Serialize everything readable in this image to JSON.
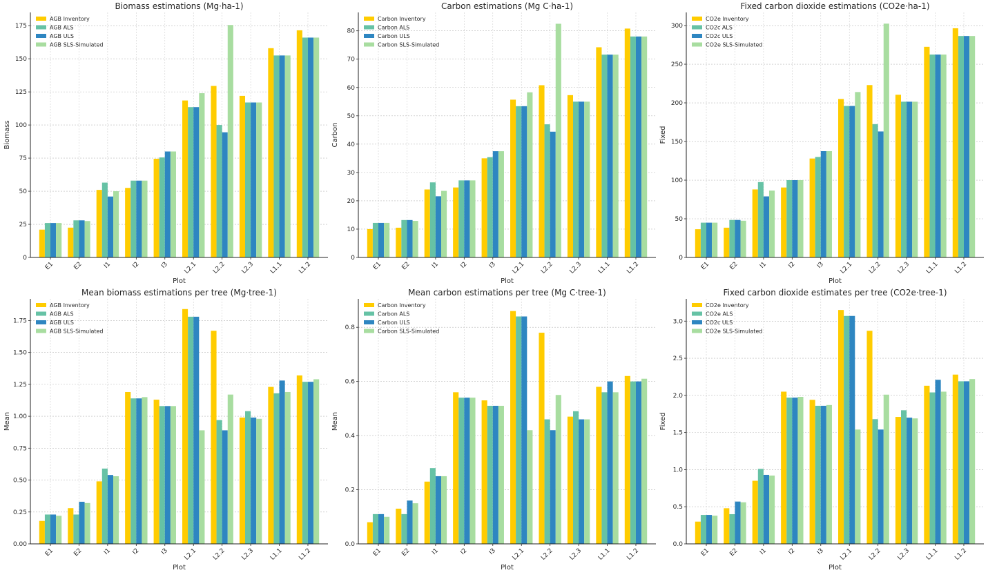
{
  "colors": [
    "#FFCC00",
    "#66C2A5",
    "#2E86C1",
    "#A8DDA0"
  ],
  "chart_data": [
    {
      "type": "bar",
      "title": "Biomass estimations (Mg·ha-1)",
      "xlabel": "Plot",
      "ylabel": "Biomass",
      "categories": [
        "E1",
        "E2",
        "I1",
        "I2",
        "I3",
        "L2.1",
        "L2.2",
        "L2.3",
        "L1.1",
        "L1.2"
      ],
      "ylim": [
        0,
        185
      ],
      "yticks": [
        0,
        25,
        50,
        75,
        100,
        125,
        150,
        175
      ],
      "ytick_labels": [
        "0",
        "25",
        "50",
        "75",
        "100",
        "125",
        "150",
        "175"
      ],
      "legend_position": "top-left",
      "series": [
        {
          "name": "AGB Inventory",
          "values": [
            21,
            22.5,
            51,
            52.5,
            74.5,
            118.5,
            129.5,
            122,
            158,
            171.5
          ]
        },
        {
          "name": "AGB ALS",
          "values": [
            26,
            28,
            56.5,
            58,
            75.5,
            113.5,
            100,
            117,
            152.5,
            166
          ]
        },
        {
          "name": "AGB ULS",
          "values": [
            26,
            28,
            46,
            58,
            80,
            113.5,
            94.5,
            117,
            152.5,
            166
          ]
        },
        {
          "name": "AGB SLS-Simulated",
          "values": [
            26,
            27.5,
            50,
            58,
            80,
            124,
            175.5,
            117,
            152.5,
            166
          ]
        }
      ]
    },
    {
      "type": "bar",
      "title": "Carbon estimations (Mg C·ha-1)",
      "xlabel": "Plot",
      "ylabel": "Carbon",
      "categories": [
        "E1",
        "E2",
        "I1",
        "I2",
        "I3",
        "L2.1",
        "L2.2",
        "L2.3",
        "L1.1",
        "L1.2"
      ],
      "ylim": [
        0,
        86.5
      ],
      "yticks": [
        0,
        10,
        20,
        30,
        40,
        50,
        60,
        70,
        80
      ],
      "ytick_labels": [
        "0",
        "10",
        "20",
        "30",
        "40",
        "50",
        "60",
        "70",
        "80"
      ],
      "legend_position": "top-left",
      "series": [
        {
          "name": "Carbon Inventory",
          "values": [
            10,
            10.5,
            24,
            24.7,
            35,
            55.7,
            60.8,
            57.3,
            74.2,
            80.8
          ]
        },
        {
          "name": "Carbon ALS",
          "values": [
            12.2,
            13.2,
            26.5,
            27.2,
            35.4,
            53.4,
            47,
            55,
            71.6,
            78
          ]
        },
        {
          "name": "Carbon ULS",
          "values": [
            12.2,
            13.2,
            21.6,
            27.2,
            37.5,
            53.4,
            44.4,
            55,
            71.6,
            78
          ]
        },
        {
          "name": "Carbon SLS-Simulated",
          "values": [
            12.2,
            12.9,
            23.5,
            27.2,
            37.5,
            58.3,
            82.5,
            55,
            71.6,
            78
          ]
        }
      ]
    },
    {
      "type": "bar",
      "title": "Fixed carbon dioxide estimations (CO2e·ha-1)",
      "xlabel": "Plot",
      "ylabel": "Fixed",
      "categories": [
        "E1",
        "E2",
        "I1",
        "I2",
        "I3",
        "L2.1",
        "L2.2",
        "L2.3",
        "L1.1",
        "L1.2"
      ],
      "ylim": [
        0,
        317
      ],
      "yticks": [
        0,
        50,
        100,
        150,
        200,
        250,
        300
      ],
      "ytick_labels": [
        "0",
        "50",
        "100",
        "150",
        "200",
        "250",
        "300"
      ],
      "legend_position": "top-left",
      "series": [
        {
          "name": "CO2e Inventory",
          "values": [
            36.5,
            38.5,
            88,
            90.5,
            128,
            205,
            223,
            210.5,
            272.5,
            296.5
          ]
        },
        {
          "name": "CO2c ALS",
          "values": [
            45,
            48.5,
            97.5,
            100,
            130,
            196,
            172.5,
            201.5,
            262.5,
            286.5
          ]
        },
        {
          "name": "CO2c ULS",
          "values": [
            45,
            48.5,
            79,
            100,
            137.5,
            196,
            163,
            201.5,
            262.5,
            286.5
          ]
        },
        {
          "name": "CO2e SLS-Simulated",
          "values": [
            45,
            47.5,
            86.5,
            100,
            137.5,
            214,
            302.5,
            201.5,
            262.5,
            286.5
          ]
        }
      ]
    },
    {
      "type": "bar",
      "title": "Mean biomass estimations per tree (Mg·tree-1)",
      "xlabel": "Plot",
      "ylabel": "Mean",
      "categories": [
        "E1",
        "E2",
        "I1",
        "I2",
        "I3",
        "L2.1",
        "L2.2",
        "L2.3",
        "L1.1",
        "L1.2"
      ],
      "ylim": [
        0,
        1.92
      ],
      "yticks": [
        0,
        0.25,
        0.5,
        0.75,
        1.0,
        1.25,
        1.5,
        1.75
      ],
      "ytick_labels": [
        "0.00",
        "0.25",
        "0.50",
        "0.75",
        "1.00",
        "1.25",
        "1.50",
        "1.75"
      ],
      "legend_position": "top-left",
      "series": [
        {
          "name": "AGB Inventory",
          "values": [
            0.18,
            0.28,
            0.49,
            1.19,
            1.13,
            1.84,
            1.67,
            0.99,
            1.23,
            1.32
          ]
        },
        {
          "name": "AGB ALS",
          "values": [
            0.23,
            0.23,
            0.59,
            1.14,
            1.08,
            1.78,
            0.97,
            1.04,
            1.18,
            1.27
          ]
        },
        {
          "name": "AGB ULS",
          "values": [
            0.23,
            0.33,
            0.54,
            1.14,
            1.08,
            1.78,
            0.89,
            0.99,
            1.28,
            1.27
          ]
        },
        {
          "name": "AGB SLS-Simulated",
          "values": [
            0.22,
            0.32,
            0.53,
            1.15,
            1.08,
            0.89,
            1.17,
            0.98,
            1.19,
            1.29
          ]
        }
      ]
    },
    {
      "type": "bar",
      "title": "Mean carbon estimations per tree (Mg C·tree-1)",
      "xlabel": "Plot",
      "ylabel": "Mean",
      "categories": [
        "E1",
        "E2",
        "I1",
        "I2",
        "I3",
        "L2.1",
        "L2.2",
        "L2.3",
        "L1.1",
        "L1.2"
      ],
      "ylim": [
        0,
        0.905
      ],
      "yticks": [
        0,
        0.2,
        0.4,
        0.6,
        0.8
      ],
      "ytick_labels": [
        "0.0",
        "0.2",
        "0.4",
        "0.6",
        "0.8"
      ],
      "legend_position": "top-left",
      "series": [
        {
          "name": "Carbon Inventory",
          "values": [
            0.08,
            0.13,
            0.23,
            0.56,
            0.53,
            0.86,
            0.78,
            0.47,
            0.58,
            0.62
          ]
        },
        {
          "name": "Carbon ALS",
          "values": [
            0.11,
            0.11,
            0.28,
            0.54,
            0.51,
            0.84,
            0.46,
            0.49,
            0.56,
            0.6
          ]
        },
        {
          "name": "Carbon ULS",
          "values": [
            0.11,
            0.16,
            0.25,
            0.54,
            0.51,
            0.84,
            0.42,
            0.46,
            0.6,
            0.6
          ]
        },
        {
          "name": "Carbon SLS-Simulated",
          "values": [
            0.1,
            0.15,
            0.25,
            0.54,
            0.51,
            0.42,
            0.55,
            0.46,
            0.56,
            0.61
          ]
        }
      ]
    },
    {
      "type": "bar",
      "title": "Fixed carbon dioxide estimates per tree (CO2e·tree-1)",
      "xlabel": "Plot",
      "ylabel": "Fixed",
      "categories": [
        "E1",
        "E2",
        "I1",
        "I2",
        "I3",
        "L2.1",
        "L2.2",
        "L2.3",
        "L1.1",
        "L1.2"
      ],
      "ylim": [
        0,
        3.3
      ],
      "yticks": [
        0,
        0.5,
        1.0,
        1.5,
        2.0,
        2.5,
        3.0
      ],
      "ytick_labels": [
        "0.0",
        "0.5",
        "1.0",
        "1.5",
        "2.0",
        "2.5",
        "3.0"
      ],
      "legend_position": "top-left",
      "series": [
        {
          "name": "CO2e Inventory",
          "values": [
            0.3,
            0.48,
            0.85,
            2.05,
            1.94,
            3.15,
            2.87,
            1.71,
            2.13,
            2.28
          ]
        },
        {
          "name": "CO2e ALS",
          "values": [
            0.39,
            0.4,
            1.01,
            1.97,
            1.86,
            3.07,
            1.68,
            1.8,
            2.04,
            2.19
          ]
        },
        {
          "name": "CO2c ULS",
          "values": [
            0.39,
            0.57,
            0.93,
            1.97,
            1.86,
            3.07,
            1.54,
            1.7,
            2.21,
            2.19
          ]
        },
        {
          "name": "CO2e SLS-Simulated",
          "values": [
            0.38,
            0.56,
            0.92,
            1.98,
            1.87,
            1.54,
            2.01,
            1.69,
            2.05,
            2.22
          ]
        }
      ]
    }
  ]
}
